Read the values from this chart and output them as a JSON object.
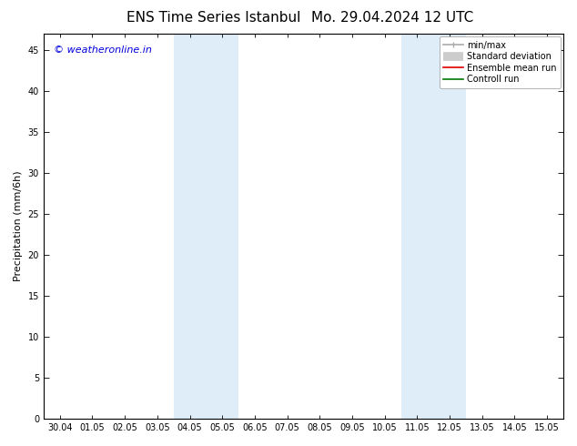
{
  "title_left": "ENS Time Series Istanbul",
  "title_right": "Mo. 29.04.2024 12 UTC",
  "ylabel": "Precipitation (mm/6h)",
  "watermark": "© weatheronline.in",
  "watermark_color": "#0000dd",
  "ylim": [
    0,
    47
  ],
  "yticks": [
    0,
    5,
    10,
    15,
    20,
    25,
    30,
    35,
    40,
    45
  ],
  "xtick_labels": [
    "30.04",
    "01.05",
    "02.05",
    "03.05",
    "04.05",
    "05.05",
    "06.05",
    "07.05",
    "08.05",
    "09.05",
    "10.05",
    "11.05",
    "12.05",
    "13.05",
    "14.05",
    "15.05"
  ],
  "background_color": "#ffffff",
  "shaded_regions": [
    {
      "xstart": 4,
      "xend": 6,
      "color": "#deedf8"
    },
    {
      "xstart": 11,
      "xend": 13,
      "color": "#deedf8"
    }
  ],
  "legend_entries": [
    {
      "label": "min/max",
      "color": "#aaaaaa",
      "linewidth": 1.2
    },
    {
      "label": "Standard deviation",
      "color": "#cccccc",
      "linewidth": 7
    },
    {
      "label": "Ensemble mean run",
      "color": "#dd0000",
      "linewidth": 1.2
    },
    {
      "label": "Controll run",
      "color": "#007700",
      "linewidth": 1.2
    }
  ],
  "title_fontsize": 11,
  "tick_label_fontsize": 7,
  "ylabel_fontsize": 8,
  "legend_fontsize": 7,
  "watermark_fontsize": 8
}
